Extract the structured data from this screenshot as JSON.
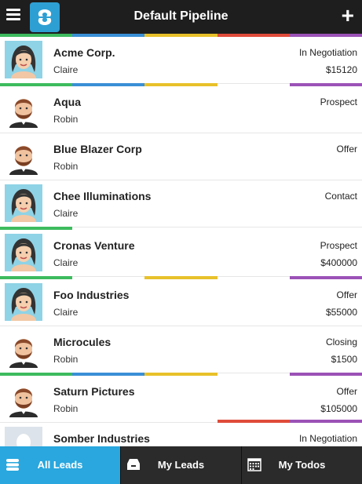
{
  "header": {
    "title": "Default Pipeline",
    "menu_icon": "hamburger-menu-icon",
    "logo_icon": "app-logo-icon",
    "add_label": "+"
  },
  "colors": {
    "header_bg": "#1e1e1e",
    "green": "#3dbb5e",
    "blue": "#3a8fd6",
    "yellow": "#e8c12a",
    "red": "#e04b3a",
    "purple": "#9b52b6",
    "active_tab": "#29a7de",
    "tabbar_bg": "#2b2b2b"
  },
  "leads": [
    {
      "name": "Acme Corp.",
      "owner": "Claire",
      "stage": "In Negotiation",
      "amount": "$15120",
      "avatar": "woman"
    },
    {
      "name": "Aqua",
      "owner": "Robin",
      "stage": "Prospect",
      "amount": "",
      "avatar": "man"
    },
    {
      "name": "Blue Blazer Corp",
      "owner": "Robin",
      "stage": "Offer",
      "amount": "",
      "avatar": "man"
    },
    {
      "name": "Chee Illuminations",
      "owner": "Claire",
      "stage": "Contact",
      "amount": "",
      "avatar": "woman"
    },
    {
      "name": "Cronas Venture",
      "owner": "Claire",
      "stage": "Prospect",
      "amount": "$400000",
      "avatar": "woman"
    },
    {
      "name": "Foo Industries",
      "owner": "Claire",
      "stage": "Offer",
      "amount": "$55000",
      "avatar": "woman"
    },
    {
      "name": "Microcules",
      "owner": "Robin",
      "stage": "Closing",
      "amount": "$1500",
      "avatar": "man"
    },
    {
      "name": "Saturn Pictures",
      "owner": "Robin",
      "stage": "Offer",
      "amount": "$105000",
      "avatar": "man"
    },
    {
      "name": "Somber Industries",
      "owner": "",
      "stage": "In Negotiation",
      "amount": "",
      "avatar": "placeholder"
    }
  ],
  "tabs": [
    {
      "label": "All Leads",
      "icon": "database-icon",
      "active": true
    },
    {
      "label": "My Leads",
      "icon": "inbox-icon",
      "active": false
    },
    {
      "label": "My Todos",
      "icon": "calendar-icon",
      "active": false
    }
  ]
}
